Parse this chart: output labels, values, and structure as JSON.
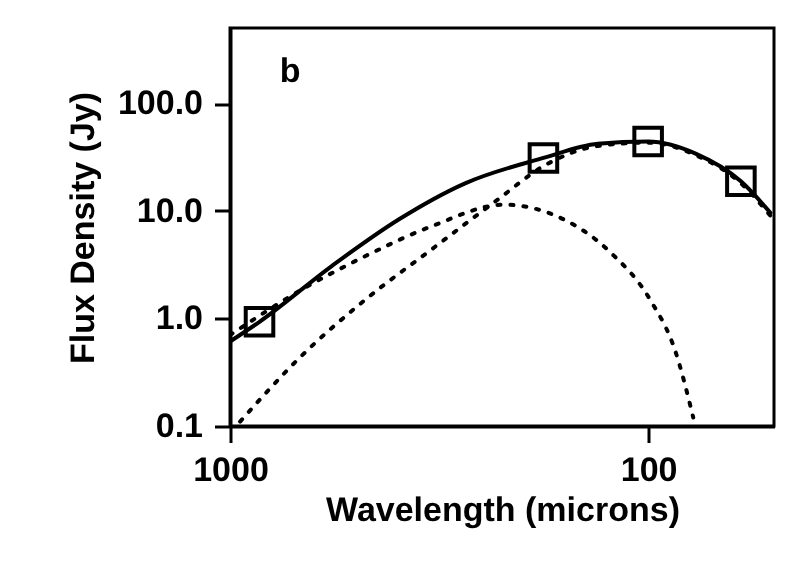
{
  "chart_data": {
    "type": "line",
    "xlabel": "Wavelength (microns)",
    "ylabel": "Flux Density (Jy)",
    "annotations": [
      "b"
    ],
    "log": "xy",
    "grid": false,
    "xlim": [
      1000,
      50
    ],
    "xticks": [
      1000,
      100
    ],
    "ylim": [
      0.1,
      500
    ],
    "yticks": [
      {
        "value": 0.1,
        "label": "0.1"
      },
      {
        "value": 1,
        "label": "1.0"
      },
      {
        "value": 10,
        "label": "10.0"
      },
      {
        "value": 100,
        "label": "100.0"
      }
    ],
    "series": [
      {
        "line_style": "solid",
        "color": "#000000",
        "x": [
          1000,
          850,
          569,
          395,
          274,
          178,
          132,
          100,
          77,
          60,
          51
        ],
        "values": [
          0.61,
          0.93,
          3.1,
          8.3,
          18,
          31,
          42,
          44,
          34,
          18.8,
          9.6
        ]
      },
      {
        "line_style": "dotted",
        "color": "#000000",
        "x": [
          946,
          682,
          474,
          329,
          229,
          178,
          132,
          100,
          77,
          60,
          51
        ],
        "values": [
          0.11,
          0.43,
          1.5,
          4.4,
          12.7,
          26,
          40,
          43,
          33,
          18,
          9
        ]
      },
      {
        "line_style": "dotted",
        "color": "#000000",
        "x": [
          1000,
          682,
          474,
          329,
          221,
          159,
          123,
          99,
          86,
          78
        ],
        "values": [
          0.7,
          1.8,
          3.8,
          7.2,
          11.4,
          8.3,
          4.1,
          1.5,
          0.49,
          0.12
        ]
      },
      {
        "type": "scatter",
        "marker": "square",
        "color": "#000000",
        "x": [
          850,
          178,
          100,
          60
        ],
        "values": [
          0.93,
          31,
          44,
          18.8
        ]
      }
    ]
  }
}
